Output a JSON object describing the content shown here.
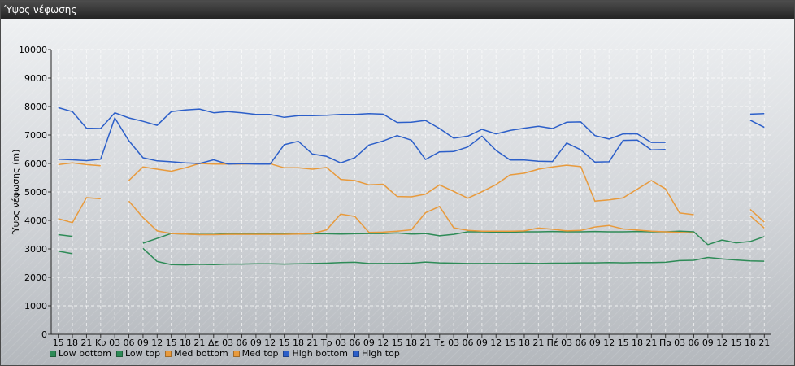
{
  "window": {
    "title": "Ύψος νέφωσης"
  },
  "chart_data": {
    "type": "line",
    "title": "",
    "xlabel": "",
    "ylabel": "Ύψος νέφωσης (m)",
    "ylim": [
      0,
      10000
    ],
    "yticks": [
      0,
      1000,
      2000,
      3000,
      4000,
      5000,
      6000,
      7000,
      8000,
      9000,
      10000
    ],
    "grid": true,
    "legend_position": "bottom-left",
    "categories": [
      "15",
      "18",
      "21",
      "Κυ",
      "03",
      "06",
      "09",
      "12",
      "15",
      "18",
      "21",
      "Δε",
      "03",
      "06",
      "09",
      "12",
      "15",
      "18",
      "21",
      "Τρ",
      "03",
      "06",
      "09",
      "12",
      "15",
      "18",
      "21",
      "Τε",
      "03",
      "06",
      "09",
      "12",
      "15",
      "18",
      "21",
      "Πέ",
      "03",
      "06",
      "09",
      "12",
      "15",
      "18",
      "21",
      "Πα",
      "03",
      "06",
      "09",
      "12",
      "15",
      "18",
      "21"
    ],
    "series": [
      {
        "name": "Low bottom",
        "color": "#2e8b57",
        "values": [
          2920,
          2830,
          null,
          null,
          null,
          null,
          3020,
          2560,
          2450,
          2440,
          2460,
          2450,
          2470,
          2470,
          2480,
          2480,
          2470,
          2480,
          2490,
          2500,
          2520,
          2530,
          2490,
          2490,
          2490,
          2500,
          2540,
          2510,
          2500,
          2490,
          2490,
          2490,
          2490,
          2500,
          2490,
          2500,
          2500,
          2510,
          2510,
          2520,
          2510,
          2520,
          2520,
          2530,
          2590,
          2600,
          2700,
          2650,
          2610,
          2580,
          2570
        ]
      },
      {
        "name": "Low top",
        "color": "#2e8b57",
        "values": [
          3500,
          3440,
          null,
          null,
          null,
          null,
          3200,
          3370,
          3540,
          3520,
          3510,
          3510,
          3530,
          3530,
          3540,
          3530,
          3520,
          3520,
          3530,
          3530,
          3520,
          3530,
          3540,
          3540,
          3560,
          3520,
          3540,
          3460,
          3510,
          3600,
          3600,
          3590,
          3590,
          3600,
          3600,
          3610,
          3600,
          3600,
          3610,
          3600,
          3600,
          3610,
          3600,
          3600,
          3620,
          3600,
          3150,
          3310,
          3210,
          3260,
          3430
        ]
      },
      {
        "name": "Med bottom",
        "color": "#e89a3c",
        "values": [
          4060,
          3920,
          4800,
          4760,
          null,
          4680,
          4100,
          3630,
          3540,
          3520,
          3500,
          3500,
          3510,
          3510,
          3510,
          3510,
          3510,
          3520,
          3540,
          3670,
          4220,
          4140,
          3580,
          3590,
          3620,
          3670,
          4270,
          4490,
          3740,
          3650,
          3620,
          3620,
          3620,
          3630,
          3730,
          3690,
          3630,
          3650,
          3770,
          3820,
          3700,
          3660,
          3620,
          3600,
          3580,
          3560,
          null,
          null,
          null,
          4160,
          3730
        ]
      },
      {
        "name": "Med top",
        "color": "#e89a3c",
        "values": [
          5960,
          6020,
          5960,
          5920,
          null,
          5400,
          5880,
          5800,
          5730,
          5850,
          6000,
          5980,
          5980,
          5980,
          5990,
          5990,
          5850,
          5850,
          5800,
          5860,
          5440,
          5400,
          5250,
          5270,
          4840,
          4830,
          4920,
          5250,
          5020,
          4780,
          5010,
          5260,
          5600,
          5660,
          5800,
          5880,
          5940,
          5890,
          4680,
          4720,
          4790,
          5100,
          5400,
          5110,
          4260,
          4200,
          null,
          null,
          null,
          4390,
          3940
        ]
      },
      {
        "name": "High bottom",
        "color": "#2c5fc9",
        "values": [
          6150,
          6130,
          6100,
          6150,
          7600,
          6800,
          6200,
          6090,
          6060,
          6020,
          6000,
          6130,
          5980,
          5990,
          5980,
          5980,
          6660,
          6780,
          6330,
          6250,
          6020,
          6200,
          6650,
          6790,
          6980,
          6820,
          6140,
          6410,
          6420,
          6580,
          6960,
          6460,
          6120,
          6120,
          6080,
          6070,
          6720,
          6480,
          6050,
          6060,
          6810,
          6820,
          6480,
          6490,
          null,
          null,
          null,
          null,
          null,
          7520,
          7270
        ]
      },
      {
        "name": "High top",
        "color": "#2c5fc9",
        "values": [
          7960,
          7820,
          7240,
          7230,
          7780,
          7600,
          7480,
          7340,
          7820,
          7880,
          7910,
          7780,
          7820,
          7780,
          7720,
          7720,
          7620,
          7680,
          7680,
          7690,
          7720,
          7720,
          7750,
          7730,
          7440,
          7450,
          7510,
          7230,
          6890,
          6960,
          7200,
          7040,
          7160,
          7240,
          7310,
          7230,
          7450,
          7460,
          6980,
          6860,
          7040,
          7040,
          6740,
          6740,
          null,
          null,
          null,
          null,
          null,
          7730,
          7750
        ]
      }
    ]
  }
}
